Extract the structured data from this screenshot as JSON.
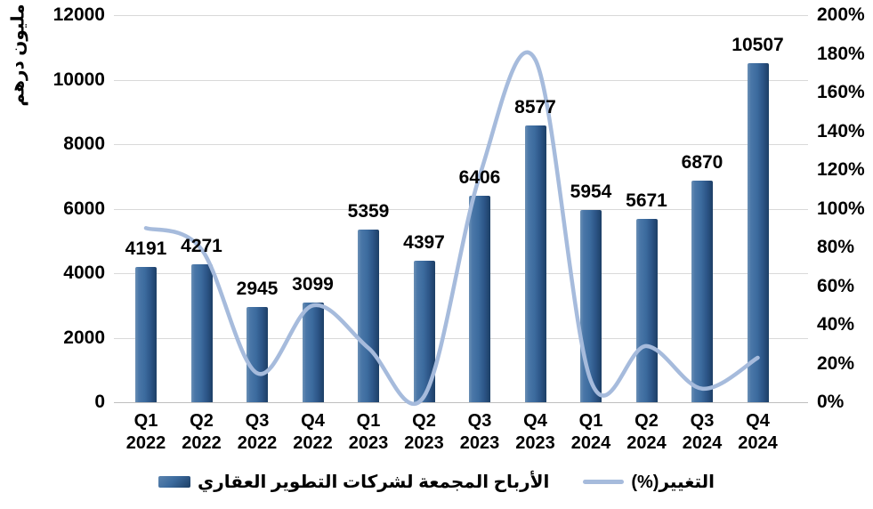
{
  "chart": {
    "y_axis_title": "مليون درهم",
    "legend": {
      "bars_label": "الأرباح المجمعة لشركات التطوير العقاري",
      "line_label": "التغيير(%)"
    },
    "colors": {
      "bar_main": "#3c6b9e",
      "bar_dark_edge": "#1d3f66",
      "bar_light_edge": "#6b8fb5",
      "line": "#a6bbdc",
      "gridline": "#d9d9d9",
      "text": "#000000"
    }
  },
  "chart_data": {
    "type": "combo bar + smooth line",
    "categories": [
      "Q1 2022",
      "Q2 2022",
      "Q3 2022",
      "Q4 2022",
      "Q1 2023",
      "Q2 2023",
      "Q3 2023",
      "Q4 2023",
      "Q1 2024",
      "Q2 2024",
      "Q3 2024",
      "Q4 2024"
    ],
    "series": [
      {
        "name": "الأرباح المجمعة لشركات التطوير العقاري",
        "type": "bar",
        "axis": "left",
        "values": [
          4191,
          4271,
          2945,
          3099,
          5359,
          4397,
          6406,
          8577,
          5954,
          5671,
          6870,
          10507
        ],
        "data_labels": [
          "4191",
          "4271",
          "2945",
          "3099",
          "5359",
          "4397",
          "6406",
          "8577",
          "5954",
          "5671",
          "6870",
          "10507"
        ]
      },
      {
        "name": "التغيير(%)",
        "type": "line",
        "axis": "right",
        "values_percent": [
          90,
          79,
          15,
          50,
          28,
          3,
          117,
          177,
          11,
          29,
          7,
          23
        ],
        "smoothed": true
      }
    ],
    "left_axis": {
      "title": "مليون درهم",
      "min": 0,
      "max": 12000,
      "step": 2000,
      "tick_labels": [
        "0",
        "2000",
        "4000",
        "6000",
        "8000",
        "10000",
        "12000"
      ]
    },
    "right_axis": {
      "min": 0,
      "max": 200,
      "step": 20,
      "suffix": "%",
      "tick_labels": [
        "0%",
        "20%",
        "40%",
        "60%",
        "80%",
        "100%",
        "120%",
        "140%",
        "160%",
        "180%",
        "200%"
      ]
    },
    "grid": "horizontal only",
    "legend_position": "bottom center"
  }
}
